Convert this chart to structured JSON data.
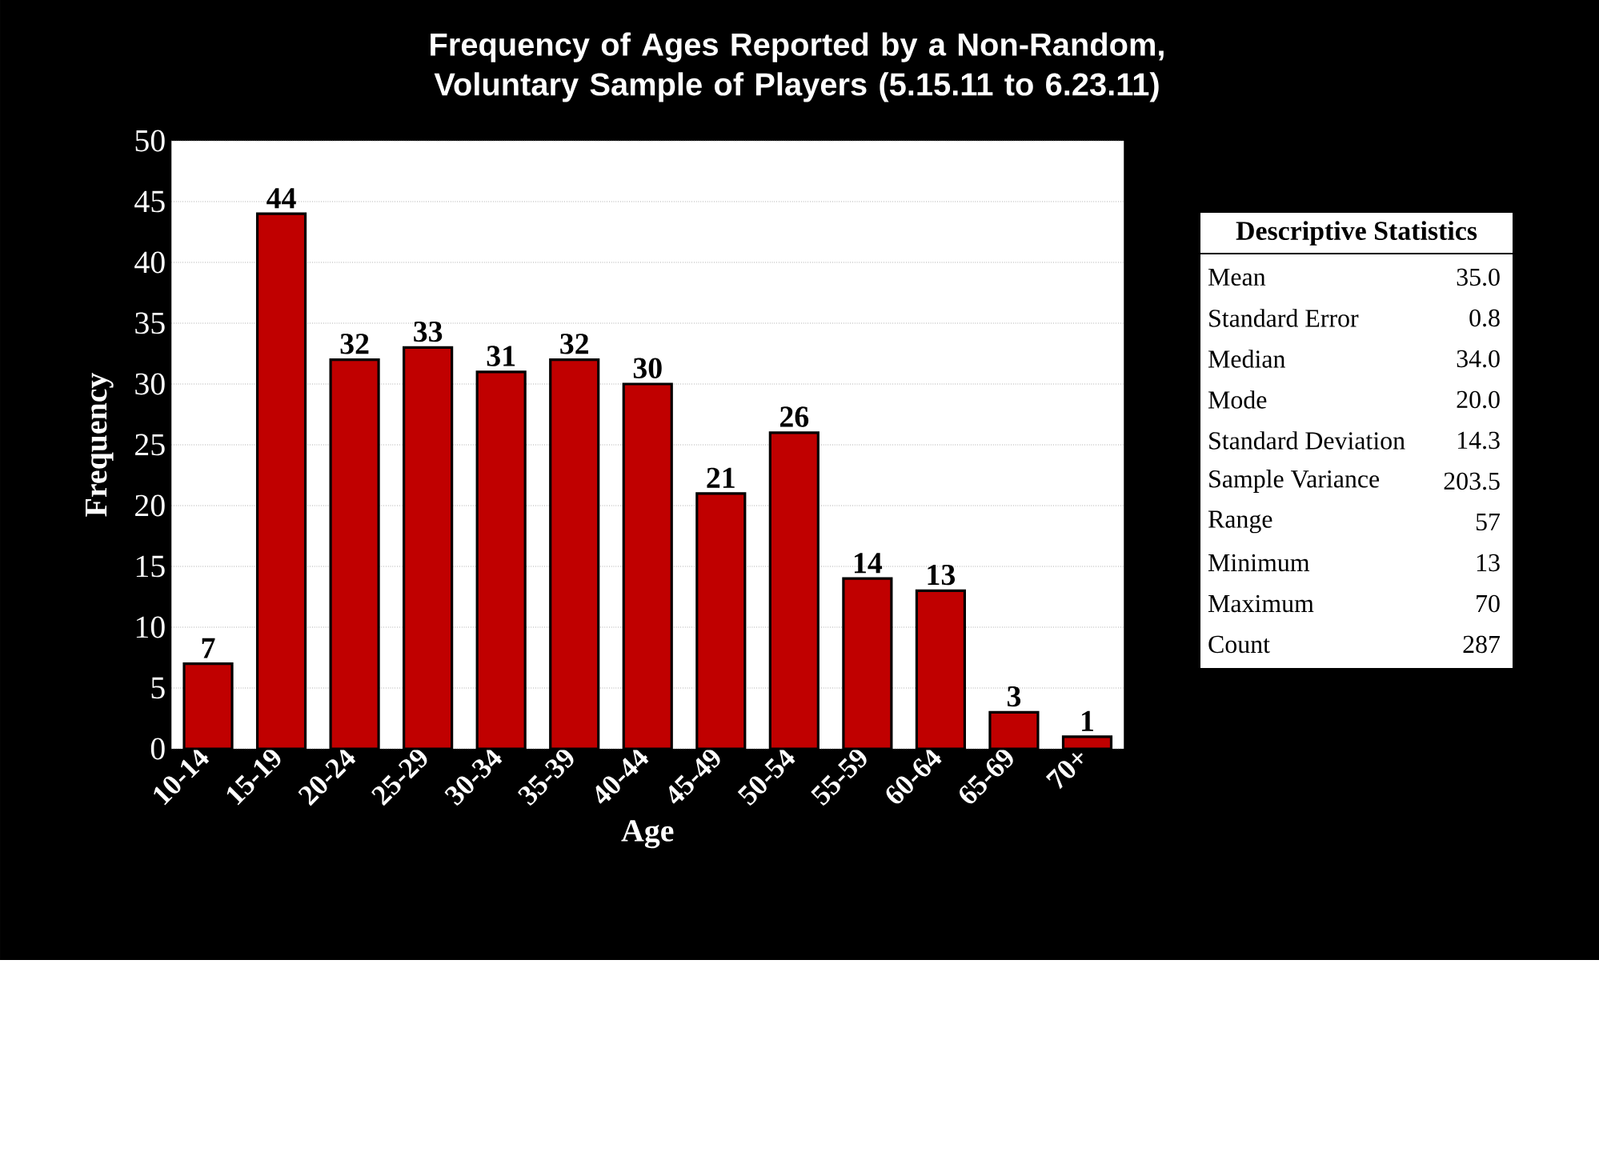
{
  "chart_data": {
    "type": "bar",
    "title": "Frequency of Ages Reported by a Non-Random, Voluntary Sample of Players (5.15.11 to 6.23.11)",
    "xlabel": "Age",
    "ylabel": "Frequency",
    "categories": [
      "10-14",
      "15-19",
      "20-24",
      "25-29",
      "30-34",
      "35-39",
      "40-44",
      "45-49",
      "50-54",
      "55-59",
      "60-64",
      "65-69",
      "70+"
    ],
    "values": [
      7,
      44,
      32,
      33,
      31,
      32,
      30,
      21,
      26,
      14,
      13,
      3,
      1
    ],
    "color": "#c00000",
    "ylim": [
      0,
      50
    ],
    "yticks": [
      0,
      5,
      10,
      15,
      20,
      25,
      30,
      35,
      40,
      45,
      50
    ],
    "grid": "y",
    "data_labels": true,
    "annotations": [
      "Descriptive Statistics",
      "Mean",
      "35.0",
      "Standard Error",
      "0.8",
      "Median",
      "34.0",
      "Mode",
      "20.0",
      "Standard Deviation",
      "14.3",
      "Sample Variance",
      "203.5",
      "Range",
      "57",
      "Minimum",
      "13",
      "Maximum",
      "70",
      "Count",
      "287"
    ]
  }
}
